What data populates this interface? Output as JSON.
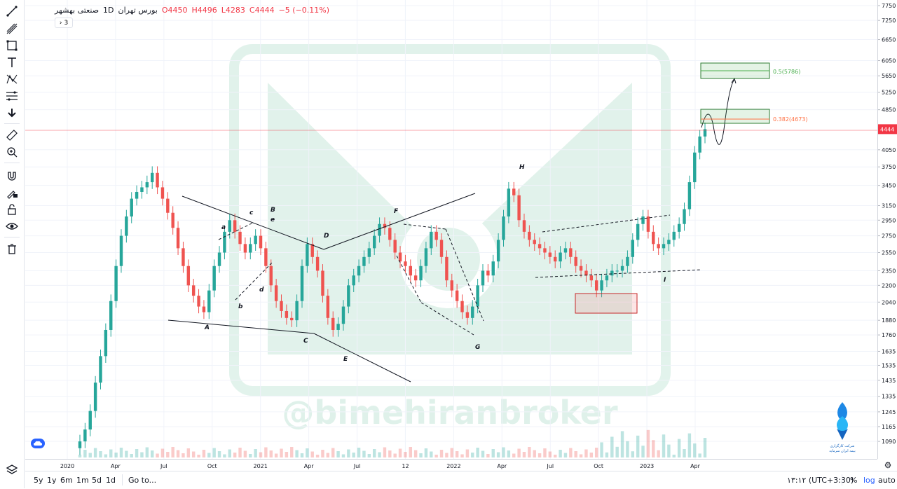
{
  "legend": {
    "symbol": "صنعتی بهشهر",
    "interval": "1D",
    "exchange": "بورس تهران",
    "open": "O4450",
    "high": "H4496",
    "low": "L4283",
    "close": "C4444",
    "change": "−5 (−0.11%)",
    "collapsed_count": "3"
  },
  "watermark": "@bimehiranbroker",
  "logo_text": [
    "شرکت‌ کارگزاری",
    "بیمه ایران‌ سرمایه"
  ],
  "chart_data": {
    "type": "candlestick",
    "ylim": [
      1030,
      7750
    ],
    "y_ticks": [
      7750,
      7250,
      6650,
      6050,
      5650,
      5250,
      4850,
      4050,
      3750,
      3450,
      3150,
      2950,
      2750,
      2550,
      2350,
      2200,
      2040,
      1880,
      1760,
      1635,
      1535,
      1435,
      1335,
      1245,
      1165,
      1090
    ],
    "x_ticks": [
      "2020",
      "Apr",
      "Jul",
      "Oct",
      "2021",
      "Apr",
      "Jul",
      "12",
      "2022",
      "Apr",
      "Jul",
      "Oct",
      "2023",
      "Apr"
    ],
    "last_price": 4444,
    "price_line_color": "#f23645",
    "up_color": "#26a69a",
    "down_color": "#ef5350",
    "series": [
      {
        "values": [
          1090,
          1150,
          1250,
          1420,
          1600,
          1800,
          2050,
          2400,
          2750,
          3000,
          3250,
          3350,
          3420,
          3500,
          3650,
          3420,
          3250,
          3050,
          2850,
          2600,
          2400,
          2200,
          2100,
          2000,
          1950,
          2150,
          2400,
          2550,
          2800,
          2950,
          2800,
          2650,
          2550,
          2650,
          2750,
          2600,
          2400,
          2200,
          2050,
          1960,
          1900,
          1880,
          2050,
          2400,
          2650,
          2500,
          2350,
          2100,
          1900,
          1800,
          1850,
          2000,
          2200,
          2300,
          2400,
          2500,
          2600,
          2750,
          2900,
          2850,
          2700,
          2550,
          2450,
          2400,
          2300,
          2250,
          2400,
          2600,
          2800,
          2700,
          2500,
          2250,
          2150,
          2050,
          1950,
          1900,
          2000,
          2200,
          2350,
          2300,
          2450,
          2700,
          3000,
          3400,
          3300,
          2950,
          2800,
          2700,
          2650,
          2600,
          2550,
          2500,
          2450,
          2550,
          2600,
          2500,
          2400,
          2350,
          2300,
          2250,
          2150,
          2250,
          2300,
          2350,
          2350,
          2400,
          2500,
          2700,
          2900,
          3000,
          2800,
          2650,
          2600,
          2650,
          2700,
          2800,
          2900,
          3100,
          3500,
          4000,
          4300,
          4444
        ]
      }
    ],
    "annotations": [
      "A",
      "B",
      "C",
      "D",
      "E",
      "F",
      "G",
      "H",
      "I",
      "a",
      "b",
      "c",
      "d",
      "e"
    ],
    "fib_labels": [
      "0.5(5786)",
      "0.382(4673)"
    ],
    "fib_colors": {
      "0.5": "#4caf50",
      "0.382": "#ff7043"
    }
  },
  "timeframes": [
    "5y",
    "1y",
    "6m",
    "1m",
    "5d",
    "1d"
  ],
  "goto_label": "Go to...",
  "clock": "۱۳:۱۲ (UTC+3:30)",
  "scale_buttons": [
    "%",
    "log",
    "auto"
  ],
  "icons": [
    "trend-line-icon",
    "pitchfork-icon",
    "rectangle-icon",
    "text-icon",
    "pattern-icon",
    "fib-icon",
    "arrow-down-icon",
    "ruler-icon",
    "zoom-icon",
    "magnet-icon",
    "lock-draw-icon",
    "lock-icon",
    "eye-icon",
    "trash-icon",
    "layers-icon",
    "settings-icon",
    "cloud-icon"
  ]
}
